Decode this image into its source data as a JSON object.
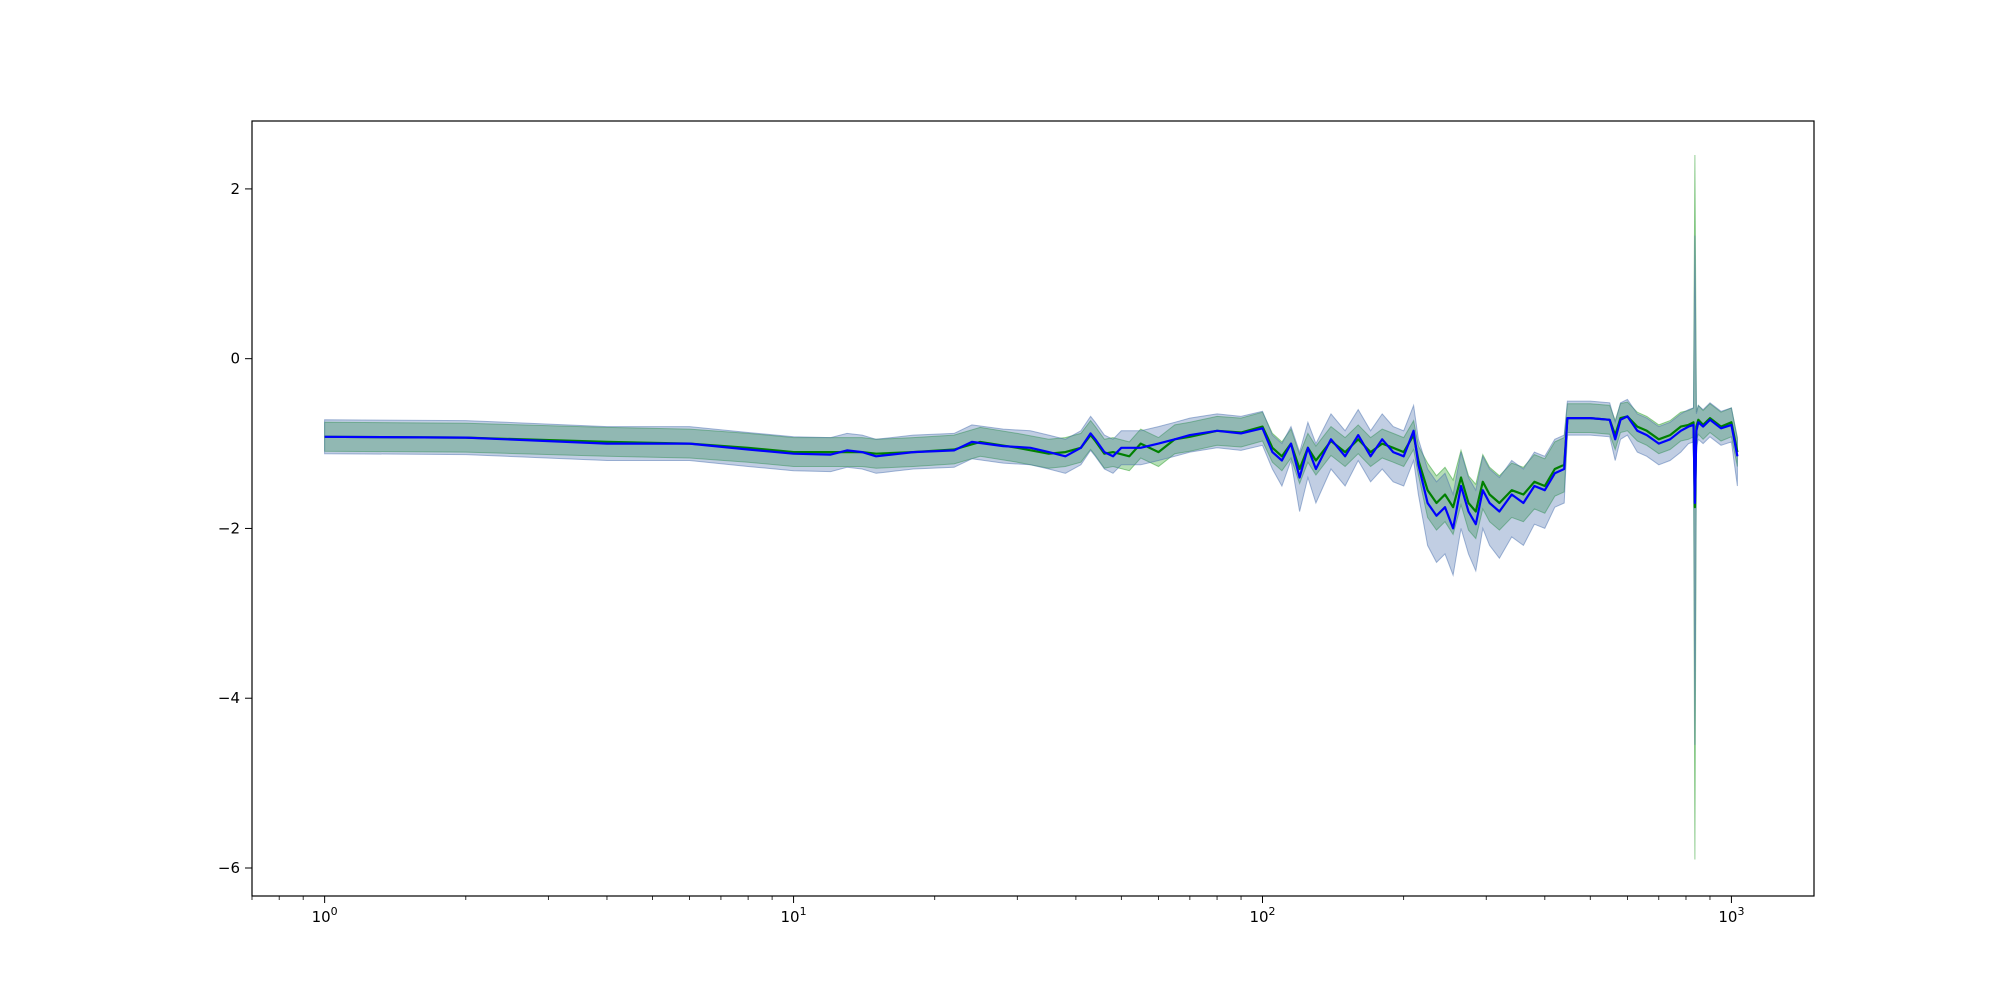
{
  "chart_data": {
    "type": "line",
    "title": "",
    "xlabel": "",
    "ylabel": "",
    "xscale": "log",
    "xlim": [
      0.7,
      1500
    ],
    "ylim": [
      -6.33,
      2.8
    ],
    "grid": false,
    "legend": "none",
    "xticks": [
      {
        "value": 1,
        "base": "10",
        "exp": "0"
      },
      {
        "value": 10,
        "base": "10",
        "exp": "1"
      },
      {
        "value": 100,
        "base": "10",
        "exp": "2"
      },
      {
        "value": 1000,
        "base": "10",
        "exp": "3"
      }
    ],
    "yticks": [
      {
        "value": 2,
        "label": "2"
      },
      {
        "value": 0,
        "label": "0"
      },
      {
        "value": -2,
        "label": "−2"
      },
      {
        "value": -4,
        "label": "−4"
      },
      {
        "value": -6,
        "label": "−6"
      }
    ],
    "series": [
      {
        "color": "#008000",
        "band_color": "#2ca02c",
        "x": [
          1,
          2,
          4,
          6,
          8,
          10,
          12,
          14,
          15,
          18,
          22,
          25,
          30,
          35,
          38,
          41,
          43,
          44,
          46,
          48,
          52,
          55,
          60,
          65,
          70,
          80,
          90,
          100,
          105,
          110,
          115,
          120,
          125,
          130,
          140,
          150,
          160,
          170,
          180,
          190,
          200,
          210,
          215,
          225,
          235,
          245,
          255,
          265,
          275,
          285,
          295,
          305,
          320,
          340,
          360,
          380,
          400,
          420,
          440,
          447,
          460,
          500,
          550,
          565,
          580,
          600,
          630,
          660,
          700,
          740,
          780,
          810,
          830,
          836,
          842,
          850,
          870,
          900,
          950,
          1000,
          1030
        ],
        "y": [
          -0.92,
          -0.93,
          -0.98,
          -1.0,
          -1.05,
          -1.1,
          -1.1,
          -1.1,
          -1.12,
          -1.1,
          -1.07,
          -0.98,
          -1.05,
          -1.12,
          -1.1,
          -1.05,
          -0.9,
          -0.97,
          -1.12,
          -1.1,
          -1.15,
          -1.0,
          -1.1,
          -0.95,
          -0.92,
          -0.85,
          -0.87,
          -0.8,
          -1.05,
          -1.15,
          -1.0,
          -1.3,
          -1.05,
          -1.2,
          -0.97,
          -1.1,
          -0.95,
          -1.1,
          -1.0,
          -1.05,
          -1.1,
          -0.9,
          -1.2,
          -1.55,
          -1.7,
          -1.6,
          -1.75,
          -1.4,
          -1.7,
          -1.8,
          -1.45,
          -1.6,
          -1.7,
          -1.55,
          -1.6,
          -1.45,
          -1.5,
          -1.3,
          -1.25,
          -0.7,
          -0.7,
          -0.7,
          -0.72,
          -0.9,
          -0.7,
          -0.68,
          -0.8,
          -0.85,
          -0.95,
          -0.9,
          -0.8,
          -0.78,
          -0.75,
          -1.75,
          -0.8,
          -0.72,
          -0.78,
          -0.7,
          -0.8,
          -0.75,
          -1.1
        ],
        "upper": [
          -0.75,
          -0.76,
          -0.81,
          -0.83,
          -0.88,
          -0.93,
          -0.93,
          -0.93,
          -0.95,
          -0.93,
          -0.9,
          -0.81,
          -0.88,
          -0.95,
          -0.93,
          -0.88,
          -0.73,
          -0.8,
          -0.95,
          -0.93,
          -0.98,
          -0.83,
          -0.93,
          -0.78,
          -0.75,
          -0.68,
          -0.7,
          -0.63,
          -0.88,
          -0.98,
          -0.83,
          -1.13,
          -0.88,
          -1.03,
          -0.8,
          -0.93,
          -0.78,
          -0.93,
          -0.83,
          -0.88,
          -0.93,
          -0.73,
          -1.03,
          -1.23,
          -1.38,
          -1.28,
          -1.43,
          -1.08,
          -1.38,
          -1.48,
          -1.13,
          -1.28,
          -1.38,
          -1.23,
          -1.28,
          -1.13,
          -1.18,
          -0.98,
          -0.93,
          -0.53,
          -0.53,
          -0.53,
          -0.55,
          -0.73,
          -0.53,
          -0.51,
          -0.63,
          -0.68,
          -0.78,
          -0.73,
          -0.63,
          -0.61,
          -0.58,
          2.4,
          -0.63,
          -0.55,
          -0.61,
          -0.53,
          -0.63,
          -0.58,
          -0.93
        ],
        "lower": [
          -1.09,
          -1.1,
          -1.15,
          -1.17,
          -1.22,
          -1.27,
          -1.27,
          -1.27,
          -1.29,
          -1.27,
          -1.24,
          -1.15,
          -1.22,
          -1.29,
          -1.27,
          -1.22,
          -1.07,
          -1.14,
          -1.29,
          -1.27,
          -1.32,
          -1.17,
          -1.27,
          -1.12,
          -1.09,
          -1.02,
          -1.04,
          -0.97,
          -1.22,
          -1.32,
          -1.17,
          -1.47,
          -1.22,
          -1.37,
          -1.14,
          -1.27,
          -1.12,
          -1.27,
          -1.17,
          -1.22,
          -1.27,
          -1.07,
          -1.37,
          -1.87,
          -2.02,
          -1.92,
          -2.07,
          -1.72,
          -2.02,
          -2.12,
          -1.77,
          -1.92,
          -2.02,
          -1.87,
          -1.92,
          -1.77,
          -1.82,
          -1.62,
          -1.57,
          -0.87,
          -0.87,
          -0.87,
          -0.89,
          -1.07,
          -0.87,
          -0.85,
          -0.97,
          -1.02,
          -1.12,
          -1.07,
          -0.97,
          -0.95,
          -0.92,
          -5.9,
          -0.97,
          -0.89,
          -0.95,
          -0.87,
          -0.97,
          -0.92,
          -1.27
        ]
      },
      {
        "color": "#0000ff",
        "band_color": "#4c72b0",
        "x": [
          1,
          2,
          4,
          6,
          8,
          10,
          12,
          13,
          14,
          15,
          18,
          22,
          24,
          28,
          32,
          35,
          38,
          41,
          43,
          44,
          46,
          48,
          50,
          55,
          60,
          65,
          70,
          80,
          90,
          100,
          105,
          110,
          115,
          120,
          125,
          130,
          140,
          150,
          160,
          170,
          180,
          190,
          200,
          210,
          215,
          225,
          235,
          245,
          255,
          265,
          275,
          285,
          295,
          305,
          320,
          340,
          360,
          380,
          400,
          420,
          440,
          447,
          460,
          500,
          550,
          565,
          580,
          600,
          630,
          660,
          700,
          740,
          780,
          810,
          830,
          836,
          842,
          850,
          870,
          900,
          950,
          1000,
          1030
        ],
        "y": [
          -0.92,
          -0.93,
          -1.0,
          -1.0,
          -1.07,
          -1.12,
          -1.13,
          -1.08,
          -1.1,
          -1.15,
          -1.1,
          -1.08,
          -0.98,
          -1.03,
          -1.05,
          -1.1,
          -1.15,
          -1.05,
          -0.88,
          -0.95,
          -1.1,
          -1.15,
          -1.05,
          -1.05,
          -1.0,
          -0.95,
          -0.9,
          -0.85,
          -0.88,
          -0.82,
          -1.1,
          -1.2,
          -1.0,
          -1.4,
          -1.05,
          -1.3,
          -0.95,
          -1.15,
          -0.9,
          -1.15,
          -0.95,
          -1.1,
          -1.15,
          -0.85,
          -1.25,
          -1.7,
          -1.85,
          -1.75,
          -2.0,
          -1.5,
          -1.8,
          -1.95,
          -1.55,
          -1.7,
          -1.8,
          -1.6,
          -1.7,
          -1.5,
          -1.55,
          -1.35,
          -1.3,
          -0.7,
          -0.7,
          -0.7,
          -0.72,
          -0.95,
          -0.72,
          -0.68,
          -0.85,
          -0.9,
          -1.0,
          -0.95,
          -0.85,
          -0.8,
          -0.78,
          -1.7,
          -0.85,
          -0.75,
          -0.8,
          -0.72,
          -0.82,
          -0.78,
          -1.15
        ],
        "upper": [
          -0.72,
          -0.73,
          -0.8,
          -0.8,
          -0.87,
          -0.92,
          -0.93,
          -0.88,
          -0.9,
          -0.95,
          -0.9,
          -0.88,
          -0.78,
          -0.83,
          -0.85,
          -0.9,
          -0.95,
          -0.85,
          -0.68,
          -0.75,
          -0.9,
          -0.95,
          -0.85,
          -0.85,
          -0.8,
          -0.75,
          -0.7,
          -0.65,
          -0.68,
          -0.62,
          -0.9,
          -1.0,
          -0.8,
          -1.1,
          -0.75,
          -1.0,
          -0.65,
          -0.85,
          -0.6,
          -0.85,
          -0.65,
          -0.8,
          -0.85,
          -0.55,
          -0.95,
          -1.3,
          -1.45,
          -1.35,
          -1.6,
          -1.1,
          -1.4,
          -1.55,
          -1.15,
          -1.3,
          -1.4,
          -1.2,
          -1.3,
          -1.1,
          -1.15,
          -0.95,
          -0.9,
          -0.5,
          -0.5,
          -0.5,
          -0.52,
          -0.75,
          -0.52,
          -0.48,
          -0.65,
          -0.7,
          -0.8,
          -0.75,
          -0.65,
          -0.6,
          -0.58,
          1.45,
          -0.65,
          -0.55,
          -0.6,
          -0.52,
          -0.62,
          -0.58,
          -0.95
        ],
        "lower": [
          -1.12,
          -1.13,
          -1.2,
          -1.2,
          -1.27,
          -1.32,
          -1.33,
          -1.28,
          -1.3,
          -1.35,
          -1.3,
          -1.28,
          -1.18,
          -1.23,
          -1.25,
          -1.3,
          -1.35,
          -1.25,
          -1.08,
          -1.15,
          -1.3,
          -1.35,
          -1.25,
          -1.25,
          -1.2,
          -1.15,
          -1.1,
          -1.05,
          -1.08,
          -1.02,
          -1.3,
          -1.5,
          -1.2,
          -1.8,
          -1.4,
          -1.7,
          -1.3,
          -1.5,
          -1.2,
          -1.45,
          -1.3,
          -1.45,
          -1.5,
          -1.2,
          -1.6,
          -2.2,
          -2.4,
          -2.3,
          -2.55,
          -2.0,
          -2.3,
          -2.5,
          -2.0,
          -2.2,
          -2.35,
          -2.1,
          -2.2,
          -1.95,
          -2.0,
          -1.75,
          -1.7,
          -0.9,
          -0.9,
          -0.9,
          -0.92,
          -1.2,
          -0.95,
          -0.9,
          -1.1,
          -1.15,
          -1.25,
          -1.2,
          -1.1,
          -1.0,
          -0.98,
          -4.55,
          -1.05,
          -0.95,
          -1.0,
          -0.92,
          -1.02,
          -0.98,
          -1.5
        ]
      }
    ]
  }
}
